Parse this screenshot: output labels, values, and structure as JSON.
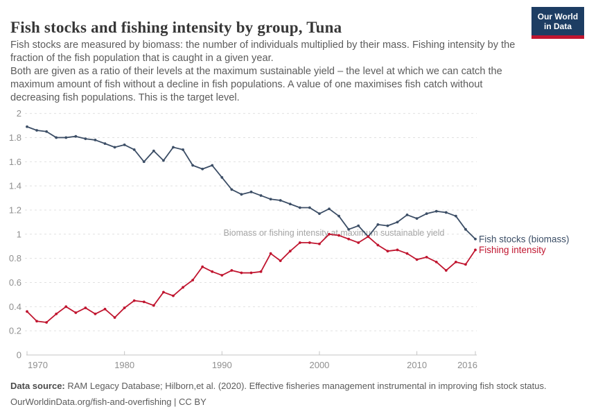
{
  "header": {
    "title": "Fish stocks and fishing intensity by group, Tuna",
    "logo_line1": "Our World",
    "logo_line2": "in Data",
    "subtitle_1": "Fish stocks are measured by biomass: the number of individuals multiplied by their mass. Fishing intensity by the fraction of the fish population that is caught in a given year.",
    "subtitle_2": "Both are given as a ratio of their levels at the maximum sustainable yield – the level at which we can catch the maximum amount of fish without a decline in fish populations. A value of one maximises fish catch without decreasing fish populations. This is the target level."
  },
  "chart_data": {
    "type": "line",
    "title": "Fish stocks and fishing intensity by group, Tuna",
    "xlabel": "",
    "ylabel": "",
    "ylim": [
      0,
      2
    ],
    "grid": "horizontal-dashed",
    "legend_position": "right-of-line-ends",
    "annotation": "Biomass or fishing intensity at maximum sustainable yield",
    "annotation_at_y": 1,
    "yticks": [
      0,
      0.2,
      0.4,
      0.6,
      0.8,
      1,
      1.2,
      1.4,
      1.6,
      1.8,
      2
    ],
    "ytick_labels": [
      "0",
      "0.2",
      "0.4",
      "0.6",
      "0.8",
      "1",
      "1.2",
      "1.4",
      "1.6",
      "1.8",
      "2"
    ],
    "xticks": [
      1970,
      1980,
      1990,
      2000,
      2010,
      2016
    ],
    "x": [
      1970,
      1971,
      1972,
      1973,
      1974,
      1975,
      1976,
      1977,
      1978,
      1979,
      1980,
      1981,
      1982,
      1983,
      1984,
      1985,
      1986,
      1987,
      1988,
      1989,
      1990,
      1991,
      1992,
      1993,
      1994,
      1995,
      1996,
      1997,
      1998,
      1999,
      2000,
      2001,
      2002,
      2003,
      2004,
      2005,
      2006,
      2007,
      2008,
      2009,
      2010,
      2011,
      2012,
      2013,
      2014,
      2015,
      2016
    ],
    "series": [
      {
        "name": "Fish stocks (biomass)",
        "color": "#3c4e66",
        "values": [
          1.89,
          1.86,
          1.85,
          1.8,
          1.8,
          1.81,
          1.79,
          1.78,
          1.75,
          1.72,
          1.74,
          1.7,
          1.6,
          1.69,
          1.61,
          1.72,
          1.7,
          1.57,
          1.54,
          1.57,
          1.47,
          1.37,
          1.33,
          1.35,
          1.32,
          1.29,
          1.28,
          1.25,
          1.22,
          1.22,
          1.17,
          1.21,
          1.15,
          1.04,
          1.07,
          0.98,
          1.08,
          1.07,
          1.1,
          1.16,
          1.13,
          1.17,
          1.19,
          1.18,
          1.15,
          1.04,
          0.96
        ]
      },
      {
        "name": "Fishing intensity",
        "color": "#c0152f",
        "values": [
          0.36,
          0.28,
          0.27,
          0.34,
          0.4,
          0.35,
          0.39,
          0.34,
          0.38,
          0.31,
          0.39,
          0.45,
          0.44,
          0.41,
          0.52,
          0.49,
          0.56,
          0.62,
          0.73,
          0.69,
          0.66,
          0.7,
          0.68,
          0.68,
          0.69,
          0.84,
          0.78,
          0.86,
          0.93,
          0.93,
          0.92,
          1.0,
          0.99,
          0.96,
          0.93,
          0.98,
          0.91,
          0.86,
          0.87,
          0.84,
          0.79,
          0.81,
          0.77,
          0.7,
          0.77,
          0.75,
          0.87
        ]
      }
    ]
  },
  "footer": {
    "source_label": "Data source:",
    "source_text": " RAM Legacy Database; Hilborn,et al. (2020). Effective fisheries management instrumental in improving fish stock status.",
    "license_text": "OurWorldinData.org/fish-and-overfishing | CC BY"
  }
}
